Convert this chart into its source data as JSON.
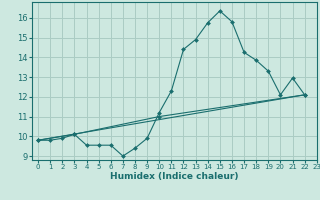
{
  "xlabel": "Humidex (Indice chaleur)",
  "background_color": "#cde8e0",
  "grid_color": "#aaccc4",
  "line_color": "#1a6e6e",
  "xlim": [
    -0.5,
    23
  ],
  "ylim": [
    8.8,
    16.8
  ],
  "yticks": [
    9,
    10,
    11,
    12,
    13,
    14,
    15,
    16
  ],
  "xticks": [
    0,
    1,
    2,
    3,
    4,
    5,
    6,
    7,
    8,
    9,
    10,
    11,
    12,
    13,
    14,
    15,
    16,
    17,
    18,
    19,
    20,
    21,
    22,
    23
  ],
  "line1_x": [
    0,
    1,
    2,
    3,
    4,
    5,
    6,
    7,
    8,
    9,
    10,
    11,
    12,
    13,
    14,
    15,
    16,
    17,
    18,
    19,
    20,
    21,
    22
  ],
  "line1_y": [
    9.8,
    9.8,
    9.9,
    10.1,
    9.55,
    9.55,
    9.55,
    9.0,
    9.4,
    9.9,
    11.2,
    12.3,
    14.4,
    14.9,
    15.75,
    16.35,
    15.8,
    14.25,
    13.85,
    13.3,
    12.1,
    12.95,
    12.1
  ],
  "line2_x": [
    0,
    3,
    10,
    22
  ],
  "line2_y": [
    9.8,
    10.1,
    11.0,
    12.1
  ],
  "line3_x": [
    0,
    22
  ],
  "line3_y": [
    9.8,
    12.1
  ]
}
